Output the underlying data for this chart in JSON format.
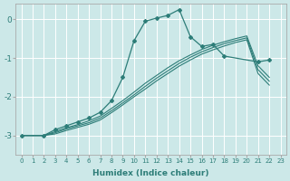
{
  "xlabel": "Humidex (Indice chaleur)",
  "background_color": "#cce8e8",
  "grid_color": "#b8d8d8",
  "line_color": "#2d7d78",
  "xlim": [
    -0.5,
    23.5
  ],
  "ylim": [
    -3.5,
    0.4
  ],
  "yticks": [
    0,
    -1,
    -2,
    -3
  ],
  "xticks": [
    0,
    1,
    2,
    3,
    4,
    5,
    6,
    7,
    8,
    9,
    10,
    11,
    12,
    13,
    14,
    15,
    16,
    17,
    18,
    19,
    20,
    21,
    22,
    23
  ],
  "main_series": {
    "x": [
      0,
      2,
      3,
      4,
      5,
      6,
      7,
      8,
      9,
      10,
      11,
      12,
      13,
      14,
      15,
      16,
      17,
      18,
      21,
      22
    ],
    "y": [
      -3.0,
      -3.0,
      -2.85,
      -2.75,
      -2.65,
      -2.55,
      -2.4,
      -2.1,
      -1.5,
      -0.55,
      -0.05,
      0.03,
      0.1,
      0.25,
      -0.45,
      -0.7,
      -0.65,
      -0.95,
      -1.1,
      -1.05
    ]
  },
  "smooth_lines": [
    {
      "x": [
        0,
        2,
        3,
        4,
        5,
        6,
        7,
        8,
        9,
        10,
        11,
        12,
        13,
        14,
        15,
        16,
        17,
        18,
        19,
        20,
        21,
        22
      ],
      "y": [
        -3.0,
        -3.0,
        -2.9,
        -2.8,
        -2.72,
        -2.62,
        -2.5,
        -2.3,
        -2.1,
        -1.88,
        -1.65,
        -1.45,
        -1.25,
        -1.07,
        -0.92,
        -0.78,
        -0.67,
        -0.58,
        -0.5,
        -0.43,
        -1.2,
        -1.5
      ]
    },
    {
      "x": [
        0,
        2,
        3,
        4,
        5,
        6,
        7,
        8,
        9,
        10,
        11,
        12,
        13,
        14,
        15,
        16,
        17,
        18,
        19,
        20,
        21,
        22
      ],
      "y": [
        -3.0,
        -3.0,
        -2.93,
        -2.83,
        -2.75,
        -2.67,
        -2.55,
        -2.36,
        -2.16,
        -1.95,
        -1.73,
        -1.52,
        -1.33,
        -1.14,
        -0.98,
        -0.84,
        -0.73,
        -0.63,
        -0.55,
        -0.48,
        -1.3,
        -1.6
      ]
    },
    {
      "x": [
        0,
        2,
        3,
        4,
        5,
        6,
        7,
        8,
        9,
        10,
        11,
        12,
        13,
        14,
        15,
        16,
        17,
        18,
        19,
        20,
        21,
        22
      ],
      "y": [
        -3.0,
        -3.0,
        -2.96,
        -2.87,
        -2.79,
        -2.71,
        -2.6,
        -2.41,
        -2.21,
        -2.0,
        -1.8,
        -1.59,
        -1.4,
        -1.21,
        -1.05,
        -0.9,
        -0.79,
        -0.69,
        -0.6,
        -0.53,
        -1.4,
        -1.7
      ]
    }
  ]
}
